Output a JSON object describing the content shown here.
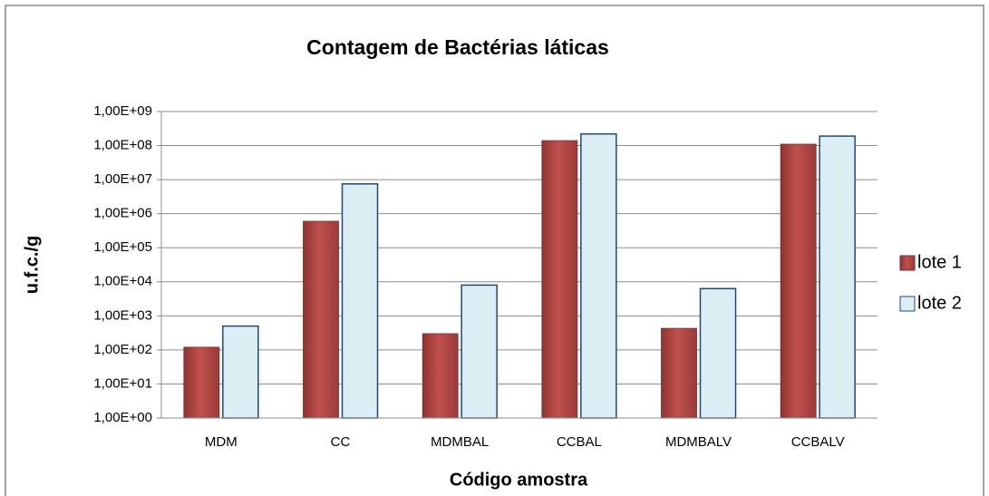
{
  "chart_data": {
    "type": "bar",
    "title": "Contagem de Bactérias láticas",
    "x_label": "Código amostra",
    "y_label": "u.f.c./g",
    "categories": [
      "MDM",
      "CC",
      "MDMBAL",
      "CCBAL",
      "MDMBALV",
      "CCBALV"
    ],
    "series": [
      {
        "name": "lote 1",
        "color": "#c0504d",
        "values": [
          120,
          600000,
          300,
          140000000,
          430,
          110000000
        ]
      },
      {
        "name": "lote 2",
        "color": "#dbeef4",
        "values": [
          500,
          7500000,
          8000,
          220000000,
          6300,
          190000000
        ]
      }
    ],
    "y_scale": "log",
    "ylim": [
      1,
      1000000000
    ],
    "yticks": [
      {
        "value": 1,
        "label": "1,00E+00"
      },
      {
        "value": 10,
        "label": "1,00E+01"
      },
      {
        "value": 100,
        "label": "1,00E+02"
      },
      {
        "value": 1000,
        "label": "1,00E+03"
      },
      {
        "value": 10000,
        "label": "1,00E+04"
      },
      {
        "value": 100000,
        "label": "1,00E+05"
      },
      {
        "value": 1000000,
        "label": "1,00E+06"
      },
      {
        "value": 10000000,
        "label": "1,00E+07"
      },
      {
        "value": 100000000,
        "label": "1,00E+08"
      },
      {
        "value": 1000000000,
        "label": "1,00E+09"
      }
    ],
    "grid": true,
    "legend_position": "right"
  }
}
